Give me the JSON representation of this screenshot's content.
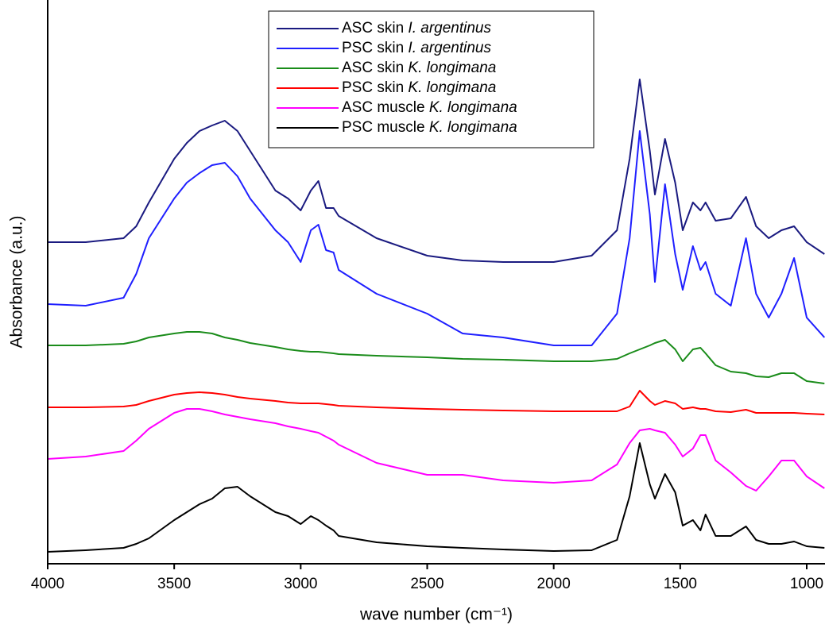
{
  "chart_data": {
    "type": "line",
    "x_label": "wave number (cm⁻¹)",
    "y_label": "Absorbance (a.u.)",
    "x": [
      4000,
      3850,
      3700,
      3650,
      3600,
      3500,
      3450,
      3400,
      3350,
      3300,
      3250,
      3200,
      3100,
      3050,
      3000,
      2960,
      2930,
      2900,
      2870,
      2850,
      2700,
      2500,
      2360,
      2200,
      2000,
      1850,
      1750,
      1700,
      1660,
      1620,
      1600,
      1560,
      1520,
      1490,
      1450,
      1420,
      1400,
      1360,
      1300,
      1240,
      1200,
      1150,
      1100,
      1050,
      1000,
      930
    ],
    "series": [
      {
        "name": "ASC skin I. argentinus",
        "color": "#1a1a80",
        "values": [
          40.5,
          40.5,
          41,
          42.5,
          45.5,
          51,
          53,
          54.5,
          55.2,
          55.8,
          54.5,
          52,
          47,
          46,
          44.5,
          47,
          48.2,
          44.8,
          44.8,
          43.8,
          41,
          38.8,
          38.2,
          38,
          38,
          38.8,
          42,
          51,
          61,
          52,
          46.5,
          53.5,
          48,
          42,
          45.5,
          44.5,
          45.5,
          43.2,
          43.5,
          46.2,
          42.5,
          41,
          42,
          42.5,
          40.5,
          39
        ]
      },
      {
        "name": "PSC skin I. argentinus",
        "color": "#1f1fff",
        "values": [
          32.7,
          32.5,
          33.5,
          36.5,
          41,
          46,
          48,
          49.2,
          50.2,
          50.5,
          48.8,
          46,
          42,
          40.5,
          38,
          42,
          42.7,
          39.5,
          39.2,
          37,
          34,
          31.5,
          29,
          28.5,
          27.5,
          27.5,
          31.5,
          41,
          54.5,
          44,
          35.5,
          47.8,
          39,
          34.5,
          40,
          37,
          38,
          34,
          32.5,
          41,
          34,
          31,
          34,
          38.5,
          31,
          28.5
        ]
      },
      {
        "name": "ASC skin K. longimana",
        "color": "#1a8c1a",
        "values": [
          27.5,
          27.5,
          27.7,
          28,
          28.5,
          29,
          29.2,
          29.2,
          29,
          28.5,
          28.2,
          27.8,
          27.3,
          27,
          26.8,
          26.7,
          26.7,
          26.6,
          26.5,
          26.4,
          26.2,
          26,
          25.8,
          25.7,
          25.5,
          25.5,
          25.8,
          26.5,
          27,
          27.5,
          27.8,
          28.2,
          27,
          25.5,
          27,
          27.2,
          26.5,
          25,
          24.2,
          24,
          23.6,
          23.5,
          24,
          24,
          23,
          22.7
        ]
      },
      {
        "name": "PSC skin K. longimana",
        "color": "#ff0000",
        "values": [
          19.7,
          19.7,
          19.8,
          20,
          20.5,
          21.3,
          21.5,
          21.6,
          21.5,
          21.3,
          21,
          20.8,
          20.5,
          20.3,
          20.2,
          20.2,
          20.2,
          20.1,
          20,
          19.9,
          19.7,
          19.5,
          19.4,
          19.3,
          19.2,
          19.2,
          19.2,
          19.8,
          21.8,
          20.5,
          20,
          20.5,
          20.2,
          19.5,
          19.7,
          19.5,
          19.5,
          19.2,
          19.1,
          19.4,
          19,
          19,
          19,
          19,
          18.9,
          18.8
        ]
      },
      {
        "name": "ASC muscle K. longimana",
        "color": "#ff00ff",
        "values": [
          13.2,
          13.5,
          14.2,
          15.5,
          17,
          19,
          19.5,
          19.5,
          19.2,
          18.8,
          18.5,
          18.2,
          17.7,
          17.3,
          17,
          16.7,
          16.5,
          16,
          15.5,
          15,
          12.7,
          11.2,
          11.2,
          10.5,
          10.2,
          10.5,
          12.5,
          15.2,
          16.8,
          17,
          16.8,
          16.5,
          15,
          13.5,
          14.5,
          16.2,
          16.2,
          13,
          11.5,
          9.8,
          9.2,
          11,
          13,
          13,
          11,
          9.5
        ]
      },
      {
        "name": "PSC muscle K. longimana",
        "color": "#000000",
        "values": [
          1.5,
          1.7,
          2,
          2.5,
          3.2,
          5.5,
          6.5,
          7.5,
          8.2,
          9.5,
          9.7,
          8.5,
          6.5,
          6,
          5,
          6,
          5.5,
          4.8,
          4.2,
          3.5,
          2.7,
          2.2,
          2,
          1.8,
          1.6,
          1.7,
          3,
          8.5,
          15.2,
          10,
          8.2,
          11.3,
          9,
          4.8,
          5.5,
          4.2,
          6.2,
          3.5,
          3.5,
          4.7,
          3,
          2.5,
          2.5,
          2.8,
          2.2,
          2
        ]
      }
    ],
    "xlim": [
      4000,
      930
    ],
    "xticks": [
      4000,
      3500,
      3000,
      2500,
      2000,
      1500,
      1000
    ],
    "ylim": [
      0,
      71
    ],
    "legend": "top-center"
  }
}
